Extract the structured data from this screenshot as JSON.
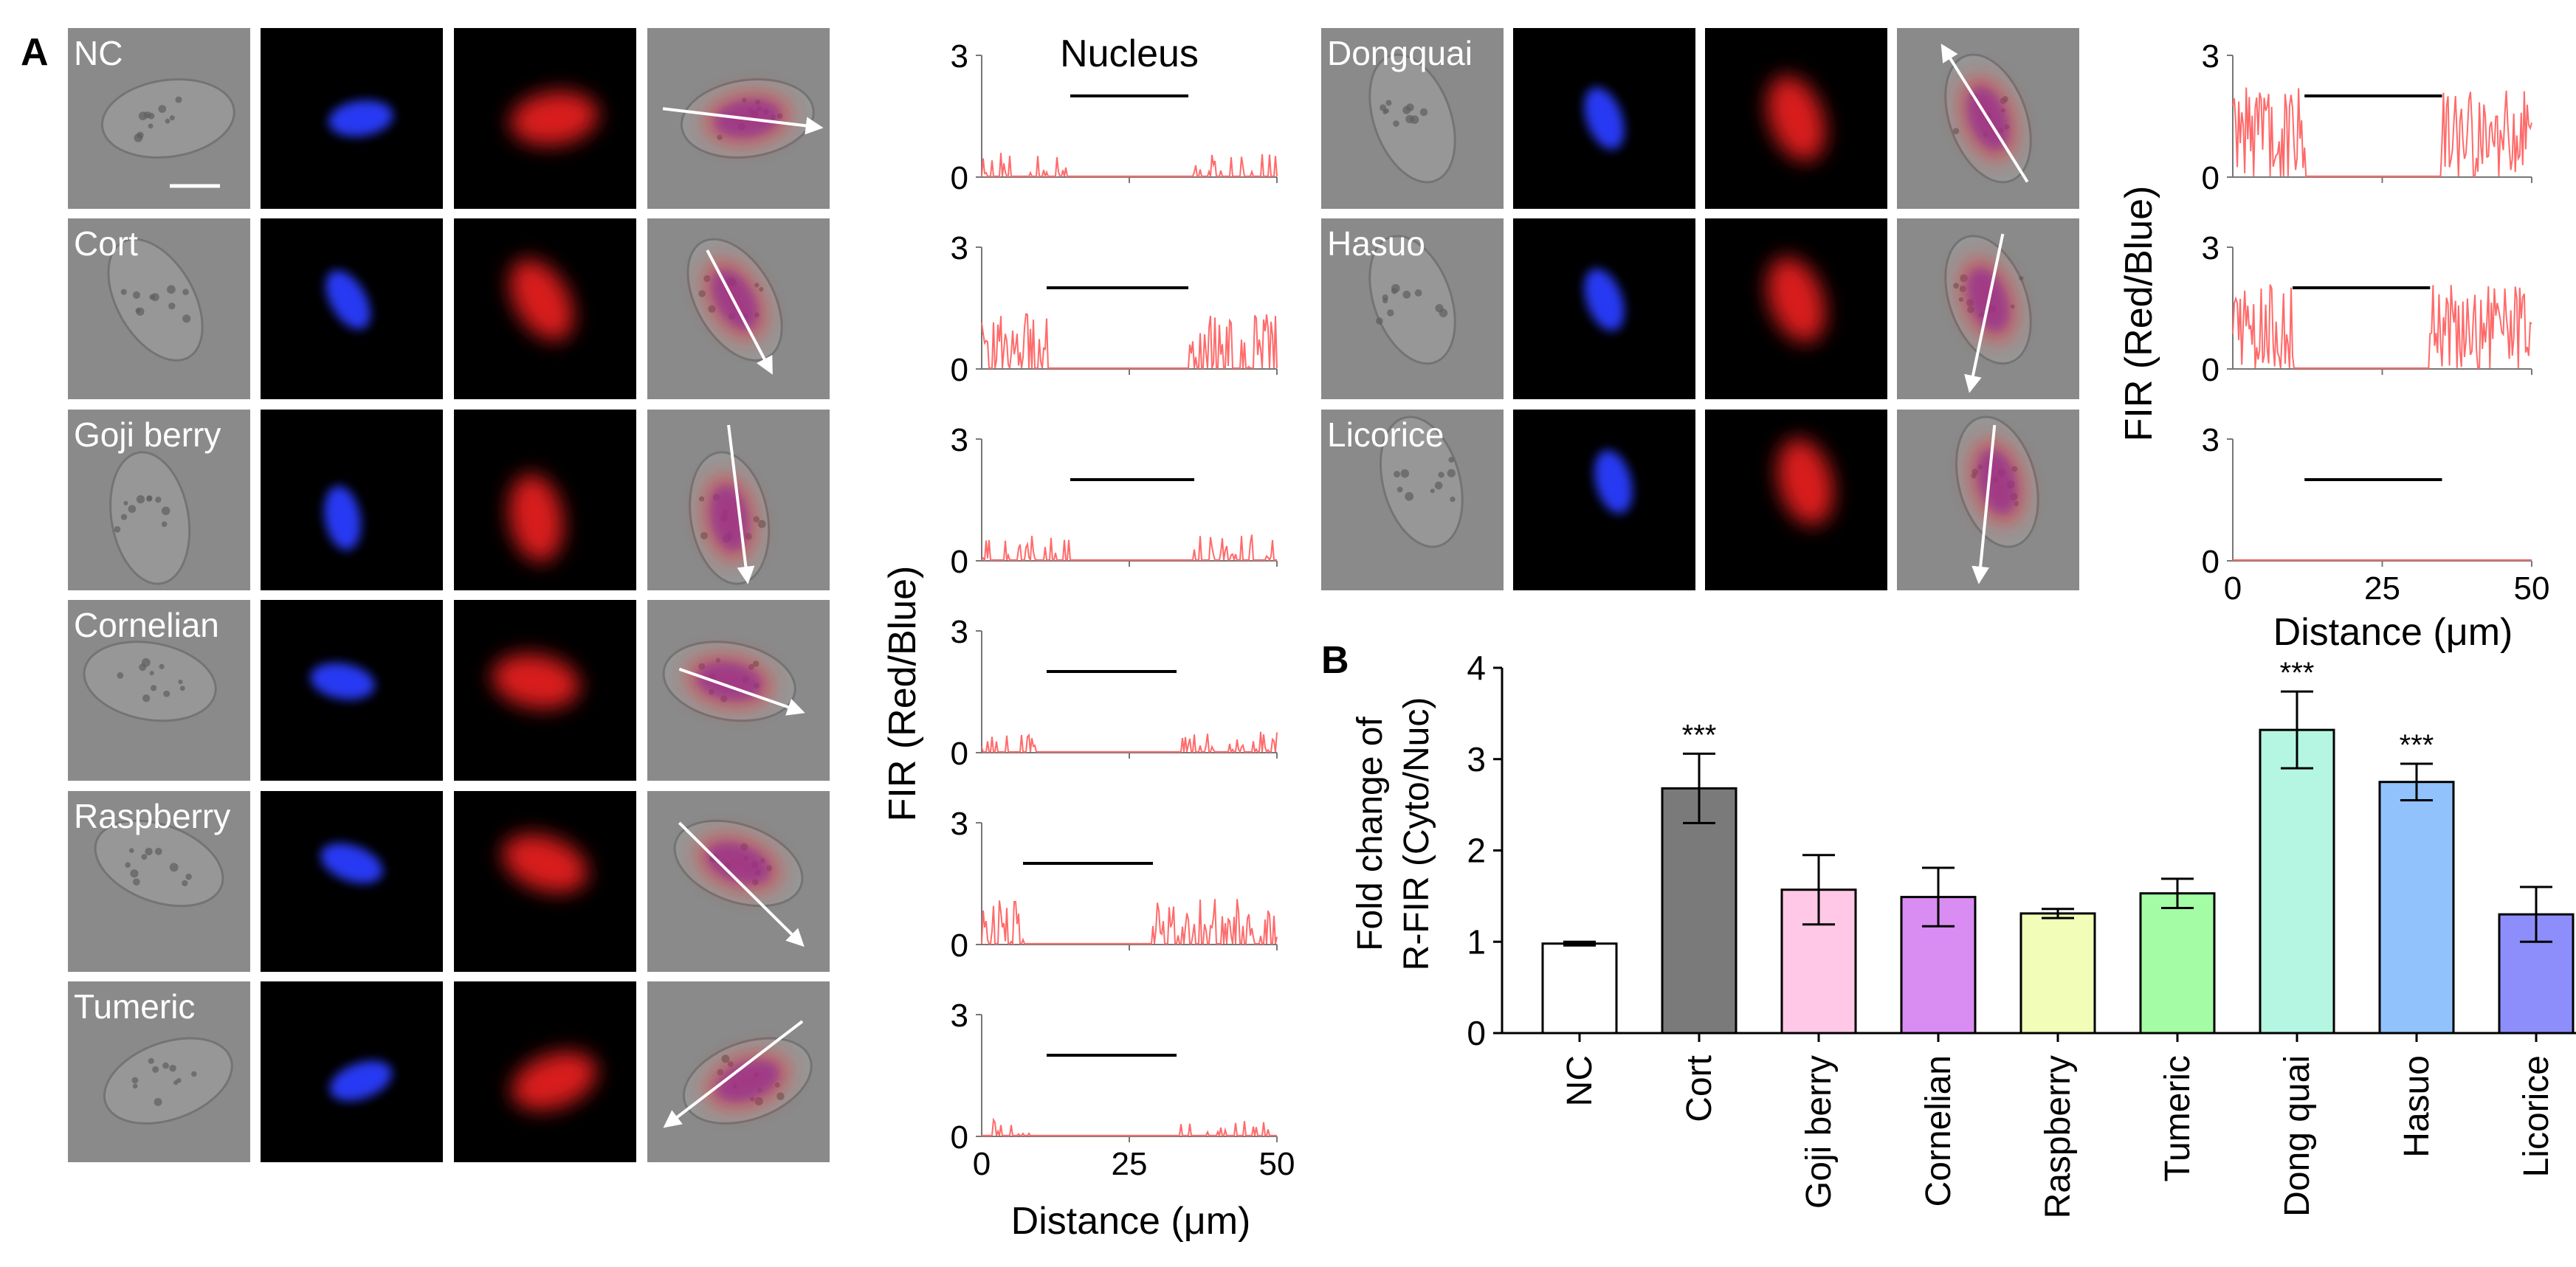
{
  "panel_letters": {
    "a": "A",
    "b": "B"
  },
  "micro": {
    "left_rows": [
      "NC",
      "Cort",
      "Goji berry",
      "Cornelian",
      "Raspberry",
      "Tumeric"
    ],
    "right_rows": [
      "Dongquai",
      "Hasuo",
      "Licorice"
    ],
    "colors": {
      "blue": "#2a3cff",
      "red": "#ff2020",
      "gray": "#8a8a8a"
    }
  },
  "profiles": {
    "nucleus_label": "Nucleus",
    "left_ylabel": "FIR (Red/Blue)",
    "right_ylabel": "FIR (Red/Blue)",
    "xlabel": "Distance (μm)",
    "x_ticks": [
      "0",
      "25",
      "50"
    ],
    "y_ticks": [
      "0",
      "3"
    ],
    "left_nucleus_spans": [
      [
        15,
        35
      ],
      [
        11,
        35
      ],
      [
        15,
        36
      ],
      [
        11,
        33
      ],
      [
        7,
        29
      ],
      [
        11,
        33
      ]
    ],
    "right_nucleus_spans": [
      [
        12,
        35
      ],
      [
        10,
        33
      ],
      [
        12,
        35
      ]
    ],
    "line_color": "#ff6a6a"
  },
  "chart_data": {
    "type": "bar",
    "categories": [
      "NC",
      "Cort",
      "Goji berry",
      "Cornelian",
      "Raspberry",
      "Tumeric",
      "Dong quai",
      "Hasuo",
      "Licorice"
    ],
    "values": [
      0.98,
      2.68,
      1.57,
      1.49,
      1.31,
      1.53,
      3.32,
      2.75,
      1.3
    ],
    "errors": [
      0.02,
      0.38,
      0.38,
      0.32,
      0.05,
      0.16,
      0.42,
      0.2,
      0.3
    ],
    "significance": [
      "",
      "***",
      "",
      "",
      "",
      "",
      "***",
      "***",
      ""
    ],
    "colors": [
      "#ffffff",
      "#7a7a7a",
      "#ffc8e6",
      "#d98cf2",
      "#f2fdb8",
      "#a4fda4",
      "#b4f6e2",
      "#91c2fb",
      "#8d8dfb"
    ],
    "ylabel_line1": "Fold change of",
    "ylabel_line2": "R-FIR (Cyto/Nuc)",
    "ylim": [
      0,
      4
    ],
    "yticks": [
      "0",
      "1",
      "2",
      "3",
      "4"
    ]
  }
}
